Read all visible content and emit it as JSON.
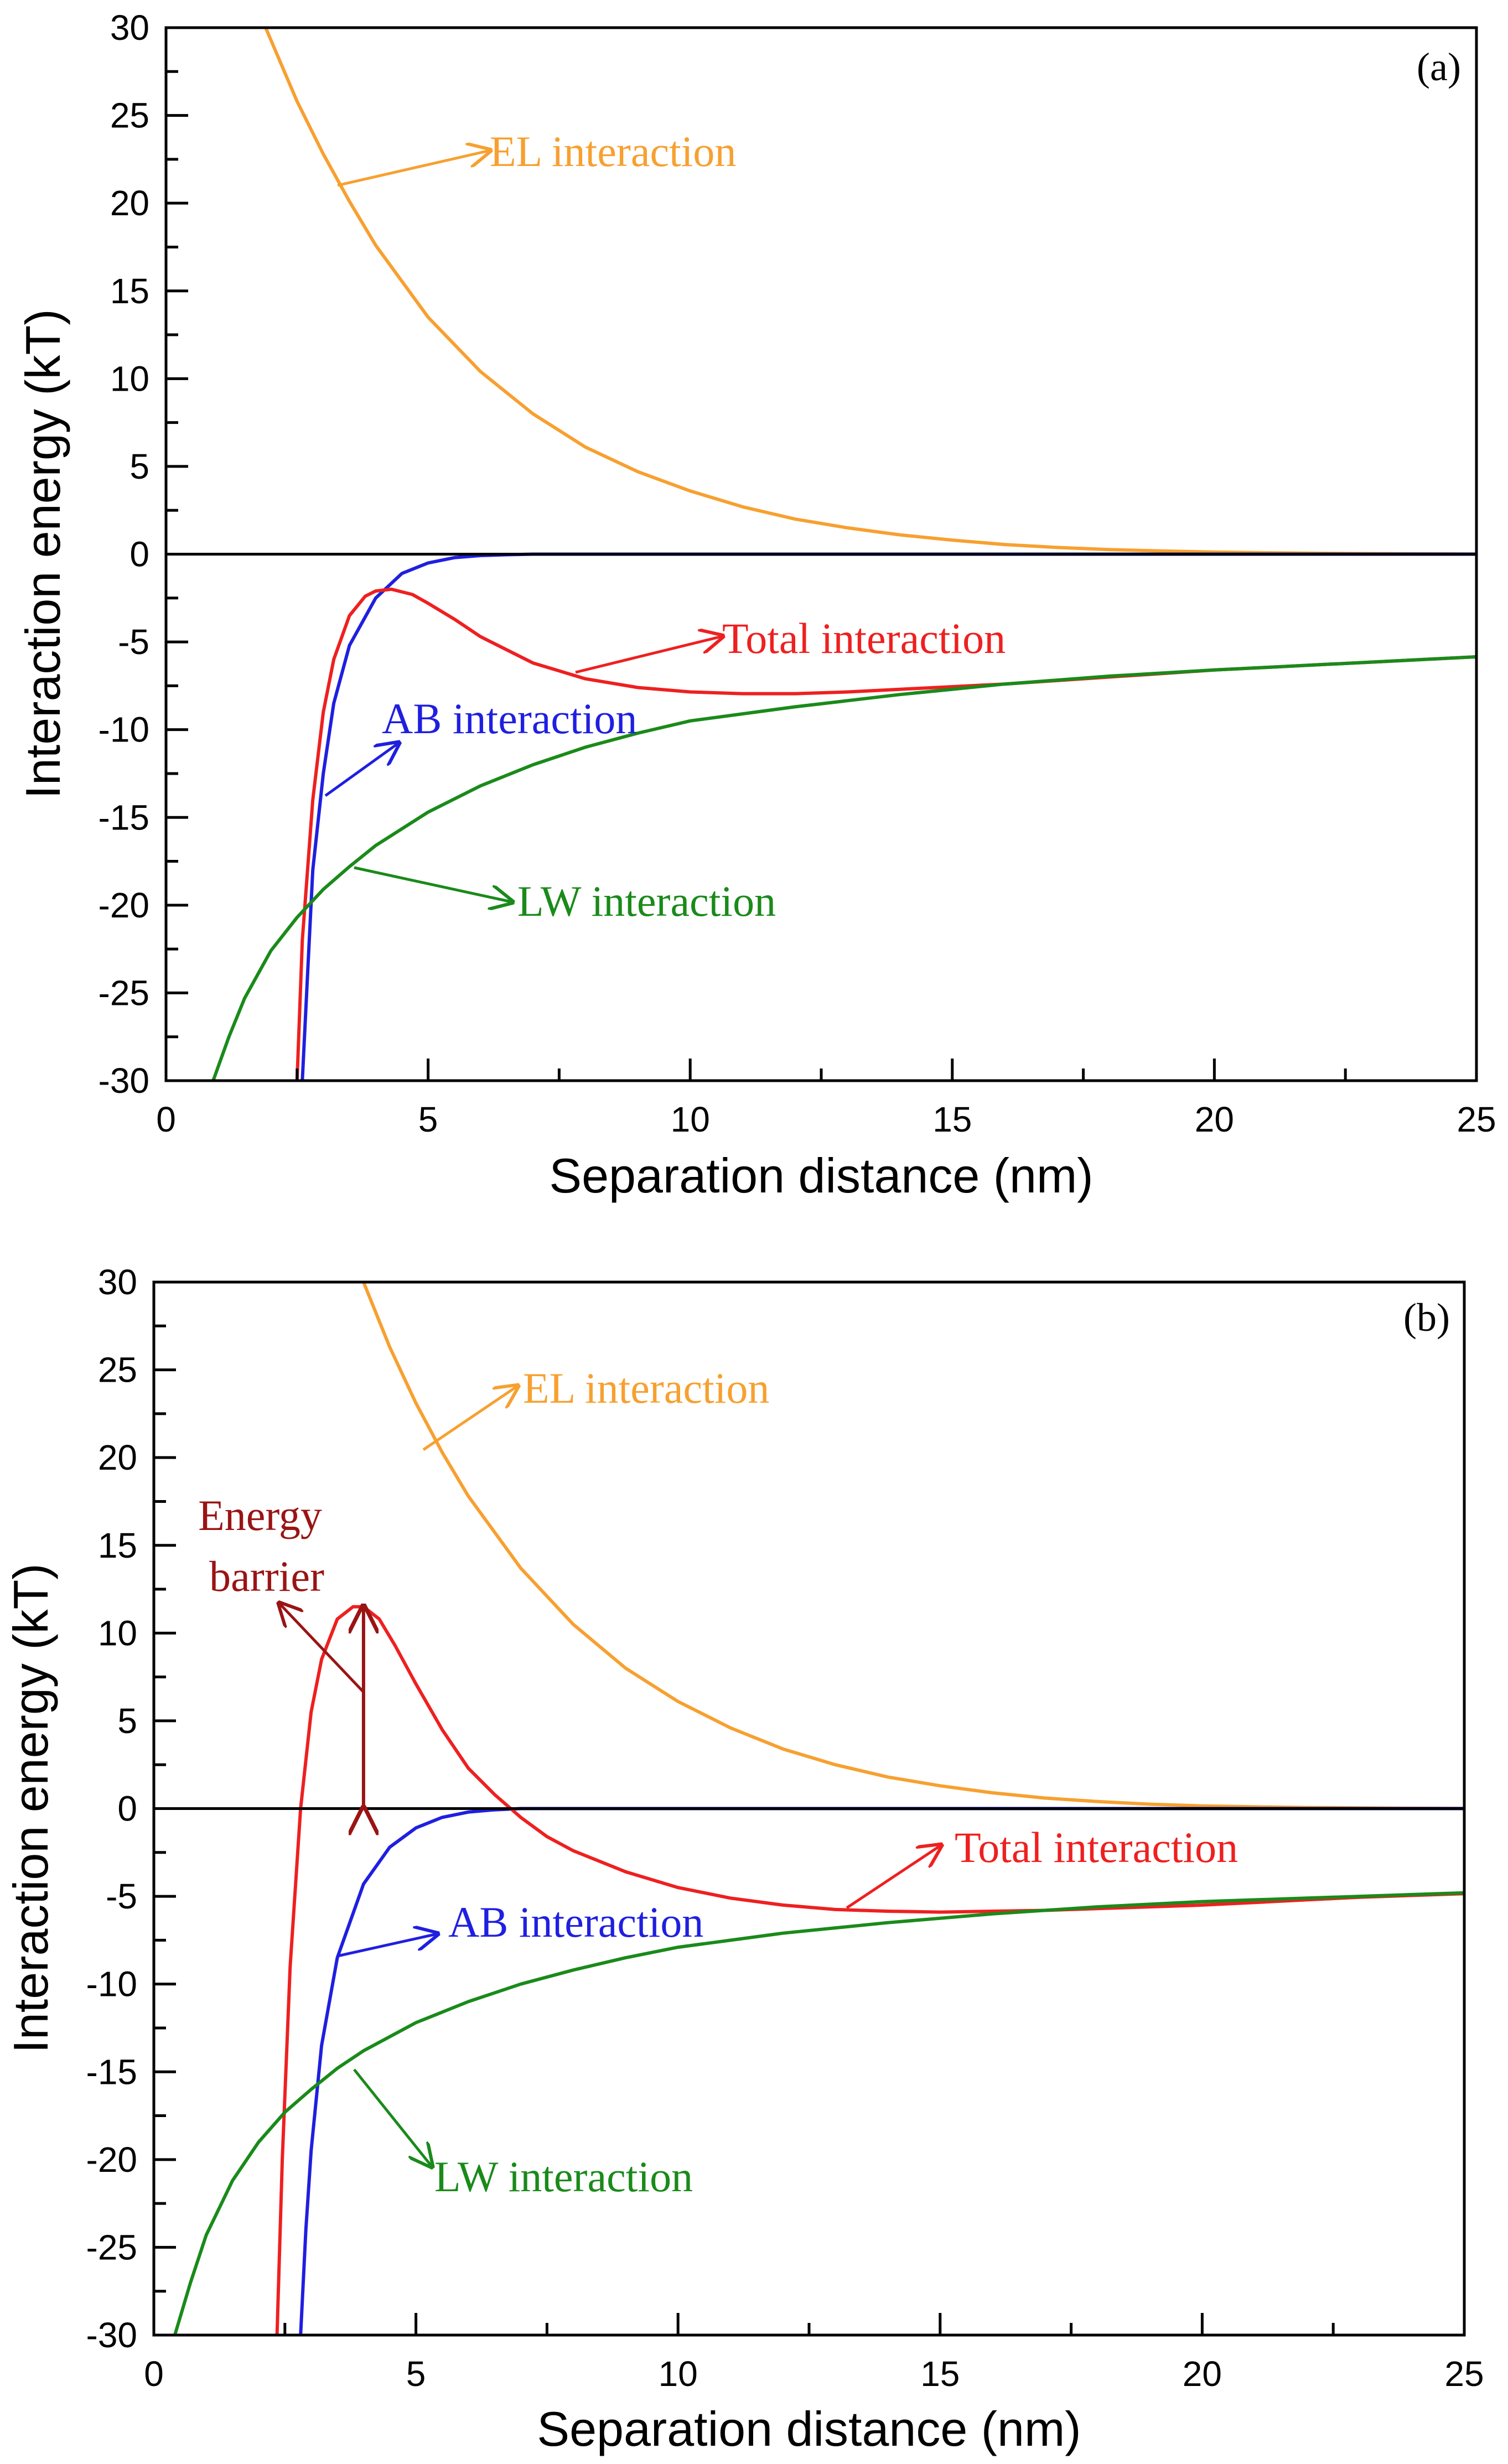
{
  "chart_data": [
    {
      "type": "line",
      "panel_label": "(a)",
      "xlabel": "Separation distance (nm)",
      "ylabel": "Interaction energy (kT)",
      "xlim": [
        0,
        25
      ],
      "ylim": [
        -30,
        30
      ],
      "x_ticks": [
        0,
        5,
        10,
        15,
        20,
        25
      ],
      "y_ticks": [
        30,
        25,
        20,
        15,
        10,
        5,
        0,
        -5,
        -10,
        -15,
        -20,
        -25,
        -30
      ],
      "series": [
        {
          "name": "EL interaction",
          "color": "#f7a030",
          "x": [
            1.9,
            2.5,
            3,
            3.5,
            4,
            5,
            6,
            7,
            8,
            9,
            10,
            11,
            12,
            13,
            14,
            15,
            16,
            17,
            18,
            19,
            20,
            21,
            22,
            23,
            24,
            25
          ],
          "y": [
            30,
            25.8,
            22.8,
            20.1,
            17.6,
            13.5,
            10.4,
            8.0,
            6.1,
            4.7,
            3.6,
            2.7,
            2.0,
            1.5,
            1.1,
            0.8,
            0.55,
            0.38,
            0.26,
            0.18,
            0.12,
            0.08,
            0.05,
            0.03,
            0.02,
            0.01
          ]
        },
        {
          "name": "AB interaction",
          "color": "#1f1fe0",
          "x": [
            2.6,
            2.7,
            2.8,
            3,
            3.2,
            3.5,
            4,
            4.5,
            5,
            5.5,
            6,
            6.5,
            7,
            25
          ],
          "y": [
            -30,
            -24,
            -18,
            -12.5,
            -8.5,
            -5.2,
            -2.5,
            -1.1,
            -0.5,
            -0.2,
            -0.08,
            -0.03,
            0,
            0
          ]
        },
        {
          "name": "Total interaction",
          "color": "#ee2020",
          "x": [
            2.5,
            2.6,
            2.8,
            3.0,
            3.2,
            3.5,
            3.8,
            4.0,
            4.3,
            4.7,
            5,
            5.5,
            6,
            7,
            8,
            9,
            10,
            11,
            12,
            13,
            14,
            15,
            16,
            17,
            18,
            19,
            20,
            21,
            22,
            23,
            24,
            25
          ],
          "y": [
            -30,
            -22,
            -14,
            -9,
            -6,
            -3.5,
            -2.4,
            -2.1,
            -2.0,
            -2.3,
            -2.8,
            -3.7,
            -4.7,
            -6.2,
            -7.1,
            -7.6,
            -7.85,
            -7.95,
            -7.95,
            -7.85,
            -7.7,
            -7.55,
            -7.4,
            -7.2,
            -7.0,
            -6.8,
            -6.6,
            -6.45,
            -6.3,
            -6.15,
            -6.0,
            -5.85
          ]
        },
        {
          "name": "LW interaction",
          "color": "#1a8a1a",
          "x": [
            0.9,
            1.2,
            1.5,
            2,
            2.5,
            3,
            3.5,
            4,
            5,
            6,
            7,
            8,
            9,
            10,
            12,
            14,
            16,
            18,
            20,
            22,
            25
          ],
          "y": [
            -30,
            -27.5,
            -25.3,
            -22.6,
            -20.7,
            -19.1,
            -17.8,
            -16.6,
            -14.7,
            -13.2,
            -12.0,
            -11.0,
            -10.2,
            -9.5,
            -8.7,
            -8.0,
            -7.4,
            -6.95,
            -6.6,
            -6.3,
            -5.85
          ]
        },
        {
          "name": "zero line",
          "color": "#000000",
          "x": [
            0,
            25
          ],
          "y": [
            0,
            0
          ]
        }
      ],
      "annotations": [
        {
          "text": "EL interaction",
          "color": "#f7a030"
        },
        {
          "text": "Total interaction",
          "color": "#ee2020"
        },
        {
          "text": "AB interaction",
          "color": "#1f1fe0"
        },
        {
          "text": "LW interaction",
          "color": "#1a8a1a"
        }
      ]
    },
    {
      "type": "line",
      "panel_label": "(b)",
      "xlabel": "Separation distance (nm)",
      "ylabel": "Interaction energy (kT)",
      "xlim": [
        0,
        25
      ],
      "ylim": [
        -30,
        30
      ],
      "x_ticks": [
        0,
        5,
        10,
        15,
        20,
        25
      ],
      "y_ticks": [
        30,
        25,
        20,
        15,
        10,
        5,
        0,
        -5,
        -10,
        -15,
        -20,
        -25,
        -30
      ],
      "series": [
        {
          "name": "EL interaction",
          "color": "#f7a030",
          "x": [
            4.0,
            4.5,
            5,
            5.5,
            6,
            7,
            8,
            9,
            10,
            11,
            12,
            13,
            14,
            15,
            16,
            17,
            18,
            19,
            20,
            21,
            22,
            23,
            24,
            25
          ],
          "y": [
            30,
            26.3,
            23.1,
            20.3,
            17.8,
            13.7,
            10.5,
            8.0,
            6.1,
            4.6,
            3.4,
            2.5,
            1.8,
            1.3,
            0.9,
            0.6,
            0.4,
            0.25,
            0.15,
            0.1,
            0.06,
            0.04,
            0.02,
            0.01
          ]
        },
        {
          "name": "AB interaction",
          "color": "#1f1fe0",
          "x": [
            2.8,
            2.9,
            3.0,
            3.2,
            3.5,
            4.0,
            4.5,
            5.0,
            5.5,
            6.0,
            6.5,
            7.0,
            25
          ],
          "y": [
            -30,
            -24,
            -19.5,
            -13.5,
            -8.5,
            -4.3,
            -2.2,
            -1.1,
            -0.5,
            -0.2,
            -0.07,
            0,
            0
          ]
        },
        {
          "name": "Total interaction",
          "color": "#ee2020",
          "x": [
            2.35,
            2.45,
            2.6,
            2.8,
            3.0,
            3.2,
            3.5,
            3.8,
            4.0,
            4.3,
            4.6,
            5.0,
            5.5,
            6.0,
            6.5,
            7.0,
            7.5,
            8,
            9,
            10,
            11,
            12,
            13,
            14,
            15,
            16,
            17,
            18,
            19,
            20,
            21,
            22,
            23,
            24,
            25
          ],
          "y": [
            -30,
            -20,
            -9,
            0,
            5.5,
            8.5,
            10.8,
            11.5,
            11.5,
            10.8,
            9.3,
            7.1,
            4.5,
            2.3,
            0.8,
            -0.5,
            -1.6,
            -2.4,
            -3.6,
            -4.5,
            -5.1,
            -5.5,
            -5.75,
            -5.85,
            -5.9,
            -5.85,
            -5.8,
            -5.7,
            -5.6,
            -5.5,
            -5.35,
            -5.2,
            -5.05,
            -4.95,
            -4.85
          ]
        },
        {
          "name": "LW interaction",
          "color": "#1a8a1a",
          "x": [
            0.4,
            0.7,
            1.0,
            1.5,
            2.0,
            2.5,
            3.0,
            3.5,
            4.0,
            5,
            6,
            7,
            8,
            9,
            10,
            12,
            14,
            16,
            18,
            20,
            22,
            25
          ],
          "y": [
            -30,
            -27,
            -24.3,
            -21.2,
            -19.0,
            -17.3,
            -16.0,
            -14.8,
            -13.8,
            -12.2,
            -11.0,
            -10.0,
            -9.2,
            -8.5,
            -7.9,
            -7.1,
            -6.5,
            -6.0,
            -5.6,
            -5.3,
            -5.1,
            -4.8
          ]
        },
        {
          "name": "zero line",
          "color": "#000000",
          "x": [
            0,
            25
          ],
          "y": [
            0,
            0
          ]
        },
        {
          "name": "Energy barrier",
          "color": "#9a1414",
          "x": [
            4.0,
            4.0
          ],
          "y": [
            0,
            11.5
          ]
        }
      ],
      "annotations": [
        {
          "text": "EL interaction",
          "color": "#f7a030"
        },
        {
          "text": "Energy",
          "color": "#9a1414"
        },
        {
          "text": "barrier",
          "color": "#9a1414"
        },
        {
          "text": "Total interaction",
          "color": "#ee2020"
        },
        {
          "text": "AB interaction",
          "color": "#1f1fe0"
        },
        {
          "text": "LW interaction",
          "color": "#1a8a1a"
        }
      ]
    }
  ]
}
